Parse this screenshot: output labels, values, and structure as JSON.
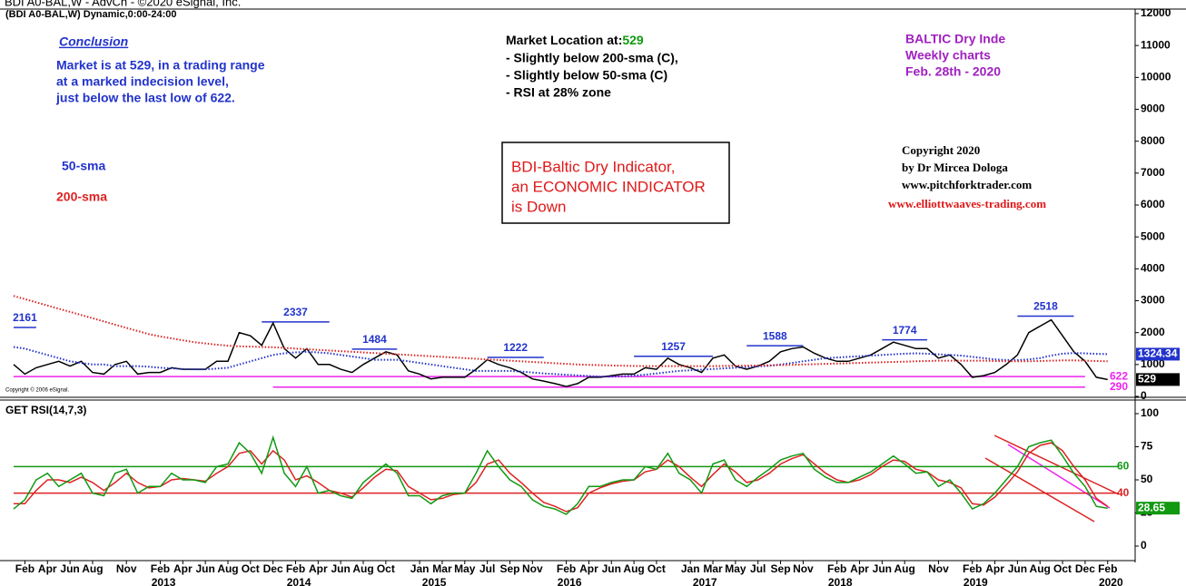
{
  "header": {
    "source": "BDI A0-BAL,W - AdvCh - ©2020 eSignal, Inc.",
    "symbol": "(BDI A0-BAL,W) Dynamic,0:00-24:00",
    "esignal_note": "Copyright © 2006 eSignal."
  },
  "conclusion": {
    "title": "Conclusion",
    "lines": [
      "Market is at 529, in a trading range",
      "at a marked indecision level,",
      "just below the last low of 622."
    ]
  },
  "market_location": {
    "label": "Market Location at:",
    "value": 529,
    "lines": [
      "- Slightly below 200-sma (C),",
      "- Slightly below 50-sma (C)",
      "- RSI  at 28% zone"
    ]
  },
  "info": [
    "BALTIC Dry Inde",
    "Weekly charts",
    "Feb. 28th - 2020"
  ],
  "box": [
    "BDI-Baltic Dry Indicator,",
    "an ECONOMIC INDICATOR",
    "is Down"
  ],
  "copyright": [
    "Copyright 2020",
    "by Dr Mircea Dologa",
    "www.pitchforktrader.com",
    "www.elliottwaaves-trading.com"
  ],
  "chart_data": [
    {
      "type": "line",
      "x": [
        "2012-01",
        "2012-02",
        "2012-03",
        "2012-04",
        "2012-05",
        "2012-06",
        "2012-07",
        "2012-08",
        "2012-09",
        "2012-10",
        "2012-11",
        "2012-12",
        "2013-01",
        "2013-02",
        "2013-03",
        "2013-04",
        "2013-05",
        "2013-06",
        "2013-07",
        "2013-08",
        "2013-09",
        "2013-10",
        "2013-11",
        "2013-12",
        "2014-01",
        "2014-02",
        "2014-03",
        "2014-04",
        "2014-05",
        "2014-06",
        "2014-07",
        "2014-08",
        "2014-09",
        "2014-10",
        "2014-11",
        "2014-12",
        "2015-01",
        "2015-02",
        "2015-03",
        "2015-04",
        "2015-05",
        "2015-06",
        "2015-07",
        "2015-08",
        "2015-09",
        "2015-10",
        "2015-11",
        "2015-12",
        "2016-01",
        "2016-02",
        "2016-03",
        "2016-04",
        "2016-05",
        "2016-06",
        "2016-07",
        "2016-08",
        "2016-09",
        "2016-10",
        "2016-11",
        "2016-12",
        "2017-01",
        "2017-02",
        "2017-03",
        "2017-04",
        "2017-05",
        "2017-06",
        "2017-07",
        "2017-08",
        "2017-09",
        "2017-10",
        "2017-11",
        "2017-12",
        "2018-01",
        "2018-02",
        "2018-03",
        "2018-04",
        "2018-05",
        "2018-06",
        "2018-07",
        "2018-08",
        "2018-09",
        "2018-10",
        "2018-11",
        "2018-12",
        "2019-01",
        "2019-02",
        "2019-03",
        "2019-04",
        "2019-05",
        "2019-06",
        "2019-07",
        "2019-08",
        "2019-09",
        "2019-10",
        "2019-11",
        "2019-12",
        "2020-01",
        "2020-02"
      ],
      "series": [
        {
          "color": "#000000",
          "dash": false,
          "tag": true,
          "values": [
            1000,
            700,
            900,
            1000,
            1100,
            950,
            1100,
            750,
            700,
            1000,
            1100,
            700,
            750,
            750,
            900,
            850,
            850,
            850,
            1100,
            1100,
            2000,
            1900,
            1600,
            2300,
            1500,
            1200,
            1500,
            1000,
            1000,
            850,
            750,
            1000,
            1200,
            1400,
            1300,
            800,
            700,
            550,
            600,
            600,
            600,
            850,
            1150,
            1000,
            900,
            750,
            550,
            480,
            400,
            310,
            400,
            600,
            600,
            650,
            700,
            700,
            900,
            850,
            1200,
            1000,
            900,
            750,
            1200,
            1300,
            950,
            850,
            950,
            1100,
            1400,
            1500,
            1550,
            1350,
            1200,
            1100,
            1100,
            1200,
            1300,
            1500,
            1700,
            1600,
            1500,
            1500,
            1200,
            1300,
            1000,
            600,
            650,
            750,
            1000,
            1300,
            2000,
            2200,
            2400,
            1900,
            1400,
            1100,
            600,
            529
          ]
        },
        {
          "name": "50-sma",
          "color": "#2233cc",
          "dash": true,
          "tag": true,
          "values": [
            1550,
            1500,
            1400,
            1300,
            1200,
            1100,
            1050,
            1000,
            1000,
            950,
            950,
            950,
            930,
            900,
            880,
            860,
            850,
            850,
            870,
            900,
            1000,
            1100,
            1200,
            1300,
            1350,
            1380,
            1400,
            1380,
            1350,
            1300,
            1250,
            1200,
            1150,
            1150,
            1150,
            1100,
            1050,
            1000,
            950,
            900,
            850,
            800,
            800,
            800,
            800,
            780,
            750,
            720,
            700,
            680,
            660,
            640,
            620,
            620,
            630,
            650,
            680,
            720,
            760,
            800,
            820,
            840,
            860,
            880,
            900,
            920,
            940,
            960,
            1000,
            1050,
            1100,
            1150,
            1200,
            1220,
            1240,
            1260,
            1280,
            1300,
            1320,
            1340,
            1350,
            1340,
            1320,
            1300,
            1280,
            1240,
            1200,
            1160,
            1140,
            1140,
            1160,
            1200,
            1280,
            1340,
            1360,
            1350,
            1335,
            1324.34
          ]
        },
        {
          "name": "200-sma",
          "color": "#dd2222",
          "dash": true,
          "tag": false,
          "values": [
            3150,
            3050,
            2950,
            2850,
            2750,
            2650,
            2550,
            2450,
            2350,
            2250,
            2150,
            2050,
            1950,
            1880,
            1820,
            1760,
            1700,
            1660,
            1620,
            1590,
            1570,
            1560,
            1550,
            1540,
            1520,
            1500,
            1480,
            1460,
            1440,
            1420,
            1400,
            1380,
            1360,
            1340,
            1320,
            1300,
            1280,
            1260,
            1240,
            1220,
            1200,
            1180,
            1160,
            1140,
            1120,
            1100,
            1080,
            1060,
            1040,
            1020,
            1000,
            990,
            980,
            970,
            960,
            955,
            950,
            950,
            950,
            950,
            950,
            950,
            950,
            955,
            960,
            965,
            970,
            975,
            980,
            990,
            1000,
            1010,
            1020,
            1030,
            1040,
            1050,
            1060,
            1070,
            1080,
            1090,
            1100,
            1110,
            1120,
            1120,
            1120,
            1120,
            1120,
            1110,
            1100,
            1100,
            1100,
            1110,
            1120,
            1130,
            1130,
            1120,
            1110,
            1100
          ]
        }
      ],
      "levels": [
        {
          "value": 2161,
          "from": "2012-01",
          "to": "2012-03",
          "color": "#2233cc"
        },
        {
          "value": 2337,
          "from": "2013-11",
          "to": "2014-05",
          "color": "#2233cc"
        },
        {
          "value": 1484,
          "from": "2014-07",
          "to": "2014-11",
          "color": "#2233cc"
        },
        {
          "value": 1222,
          "from": "2015-07",
          "to": "2015-12",
          "color": "#2233cc"
        },
        {
          "value": 1257,
          "from": "2016-08",
          "to": "2017-03",
          "color": "#2233cc"
        },
        {
          "value": 1588,
          "from": "2017-06",
          "to": "2017-11",
          "color": "#2233cc"
        },
        {
          "value": 1774,
          "from": "2018-06",
          "to": "2018-10",
          "color": "#2233cc"
        },
        {
          "value": 2518,
          "from": "2019-06",
          "to": "2019-11",
          "color": "#2233cc"
        },
        {
          "value": 622,
          "from": "2012-01",
          "to": "2019-12",
          "color": "#ee22ee"
        },
        {
          "value": 290,
          "from": "2013-12",
          "to": "2019-12",
          "color": "#ee22ee"
        }
      ],
      "ylim": [
        0,
        12000
      ],
      "yticks": [
        0,
        1000,
        2000,
        3000,
        4000,
        5000,
        6000,
        7000,
        8000,
        9000,
        10000,
        11000,
        12000
      ]
    },
    {
      "type": "line",
      "title": "GET RSI(14,7,3)",
      "x": [
        "2012-01",
        "2012-02",
        "2012-03",
        "2012-04",
        "2012-05",
        "2012-06",
        "2012-07",
        "2012-08",
        "2012-09",
        "2012-10",
        "2012-11",
        "2012-12",
        "2013-01",
        "2013-02",
        "2013-03",
        "2013-04",
        "2013-05",
        "2013-06",
        "2013-07",
        "2013-08",
        "2013-09",
        "2013-10",
        "2013-11",
        "2013-12",
        "2014-01",
        "2014-02",
        "2014-03",
        "2014-04",
        "2014-05",
        "2014-06",
        "2014-07",
        "2014-08",
        "2014-09",
        "2014-10",
        "2014-11",
        "2014-12",
        "2015-01",
        "2015-02",
        "2015-03",
        "2015-04",
        "2015-05",
        "2015-06",
        "2015-07",
        "2015-08",
        "2015-09",
        "2015-10",
        "2015-11",
        "2015-12",
        "2016-01",
        "2016-02",
        "2016-03",
        "2016-04",
        "2016-05",
        "2016-06",
        "2016-07",
        "2016-08",
        "2016-09",
        "2016-10",
        "2016-11",
        "2016-12",
        "2017-01",
        "2017-02",
        "2017-03",
        "2017-04",
        "2017-05",
        "2017-06",
        "2017-07",
        "2017-08",
        "2017-09",
        "2017-10",
        "2017-11",
        "2017-12",
        "2018-01",
        "2018-02",
        "2018-03",
        "2018-04",
        "2018-05",
        "2018-06",
        "2018-07",
        "2018-08",
        "2018-09",
        "2018-10",
        "2018-11",
        "2018-12",
        "2019-01",
        "2019-02",
        "2019-03",
        "2019-04",
        "2019-05",
        "2019-06",
        "2019-07",
        "2019-08",
        "2019-09",
        "2019-10",
        "2019-11",
        "2019-12",
        "2020-01",
        "2020-02"
      ],
      "series": [
        {
          "color": "#dd2222",
          "dash": false,
          "tag": false,
          "values": [
            32,
            32,
            42,
            50,
            50,
            48,
            52,
            48,
            42,
            48,
            55,
            48,
            44,
            45,
            50,
            51,
            50,
            49,
            55,
            60,
            70,
            72,
            62,
            72,
            65,
            50,
            53,
            48,
            42,
            40,
            37,
            44,
            52,
            58,
            57,
            45,
            40,
            35,
            36,
            39,
            40,
            48,
            62,
            65,
            55,
            48,
            40,
            33,
            30,
            26,
            29,
            40,
            44,
            47,
            49,
            50,
            56,
            58,
            65,
            60,
            52,
            45,
            54,
            62,
            56,
            48,
            50,
            55,
            62,
            66,
            69,
            62,
            55,
            50,
            48,
            50,
            54,
            60,
            65,
            64,
            58,
            56,
            50,
            48,
            44,
            32,
            31,
            37,
            46,
            56,
            70,
            76,
            78,
            72,
            60,
            50,
            36,
            30
          ]
        },
        {
          "color": "#119911",
          "dash": false,
          "tag": true,
          "values": [
            28,
            35,
            50,
            55,
            45,
            50,
            55,
            40,
            38,
            55,
            58,
            40,
            45,
            45,
            55,
            50,
            50,
            48,
            60,
            62,
            78,
            70,
            55,
            82,
            55,
            45,
            60,
            40,
            42,
            38,
            36,
            48,
            55,
            62,
            55,
            38,
            38,
            32,
            38,
            40,
            40,
            55,
            72,
            60,
            50,
            45,
            35,
            30,
            28,
            24,
            32,
            45,
            45,
            48,
            50,
            50,
            60,
            58,
            70,
            55,
            50,
            40,
            62,
            65,
            50,
            45,
            52,
            58,
            65,
            68,
            70,
            58,
            52,
            48,
            48,
            52,
            56,
            62,
            68,
            62,
            55,
            56,
            45,
            50,
            40,
            28,
            32,
            40,
            50,
            60,
            75,
            78,
            80,
            68,
            55,
            45,
            30,
            28.65
          ]
        }
      ],
      "levels": [
        {
          "value": 60,
          "from": "2012-01",
          "to": "2020-03",
          "color": "#119911"
        },
        {
          "value": 40,
          "from": "2012-01",
          "to": "2020-03",
          "color": "#dd2222"
        }
      ],
      "ylim": [
        0,
        100
      ],
      "yticks": [
        0,
        25,
        50,
        75,
        100
      ],
      "xticks": [
        {
          "value": "2012-02",
          "label": "Feb"
        },
        {
          "value": "2012-04",
          "label": "Apr"
        },
        {
          "value": "2012-06",
          "label": "Jun"
        },
        {
          "value": "2012-08",
          "label": "Aug"
        },
        {
          "value": "2012-11",
          "label": "Nov"
        },
        {
          "value": "2013-02",
          "label": "Feb"
        },
        {
          "value": "2013-04",
          "label": "Apr"
        },
        {
          "value": "2013-06",
          "label": "Jun"
        },
        {
          "value": "2013-08",
          "label": "Aug"
        },
        {
          "value": "2013-10",
          "label": "Oct"
        },
        {
          "value": "2013-12",
          "label": "Dec"
        },
        {
          "value": "2014-02",
          "label": "Feb"
        },
        {
          "value": "2014-04",
          "label": "Apr"
        },
        {
          "value": "2014-06",
          "label": "Jun"
        },
        {
          "value": "2014-08",
          "label": "Aug"
        },
        {
          "value": "2014-10",
          "label": "Oct"
        },
        {
          "value": "2015-01",
          "label": "Jan"
        },
        {
          "value": "2015-03",
          "label": "Mar"
        },
        {
          "value": "2015-05",
          "label": "May"
        },
        {
          "value": "2015-07",
          "label": "Jul"
        },
        {
          "value": "2015-09",
          "label": "Sep"
        },
        {
          "value": "2015-11",
          "label": "Nov"
        },
        {
          "value": "2016-02",
          "label": "Feb"
        },
        {
          "value": "2016-04",
          "label": "Apr"
        },
        {
          "value": "2016-06",
          "label": "Jun"
        },
        {
          "value": "2016-08",
          "label": "Aug"
        },
        {
          "value": "2016-10",
          "label": "Oct"
        },
        {
          "value": "2017-01",
          "label": "Jan"
        },
        {
          "value": "2017-03",
          "label": "Mar"
        },
        {
          "value": "2017-05",
          "label": "May"
        },
        {
          "value": "2017-07",
          "label": "Jul"
        },
        {
          "value": "2017-09",
          "label": "Sep"
        },
        {
          "value": "2017-11",
          "label": "Nov"
        },
        {
          "value": "2018-02",
          "label": "Feb"
        },
        {
          "value": "2018-04",
          "label": "Apr"
        },
        {
          "value": "2018-06",
          "label": "Jun"
        },
        {
          "value": "2018-08",
          "label": "Aug"
        },
        {
          "value": "2018-11",
          "label": "Nov"
        },
        {
          "value": "2019-02",
          "label": "Feb"
        },
        {
          "value": "2019-04",
          "label": "Apr"
        },
        {
          "value": "2019-06",
          "label": "Jun"
        },
        {
          "value": "2019-08",
          "label": "Aug"
        },
        {
          "value": "2019-10",
          "label": "Oct"
        },
        {
          "value": "2019-12",
          "label": "Dec"
        },
        {
          "value": "2020-02",
          "label": "Feb"
        }
      ],
      "year_ticks": [
        {
          "value": "2013-01",
          "label": "2013"
        },
        {
          "value": "2014-01",
          "label": "2014"
        },
        {
          "value": "2015-01",
          "label": "2015"
        },
        {
          "value": "2016-01",
          "label": "2016"
        },
        {
          "value": "2017-01",
          "label": "2017"
        },
        {
          "value": "2018-01",
          "label": "2018"
        },
        {
          "value": "2019-01",
          "label": "2019"
        },
        {
          "value": "2020-01",
          "label": "2020"
        }
      ]
    }
  ]
}
